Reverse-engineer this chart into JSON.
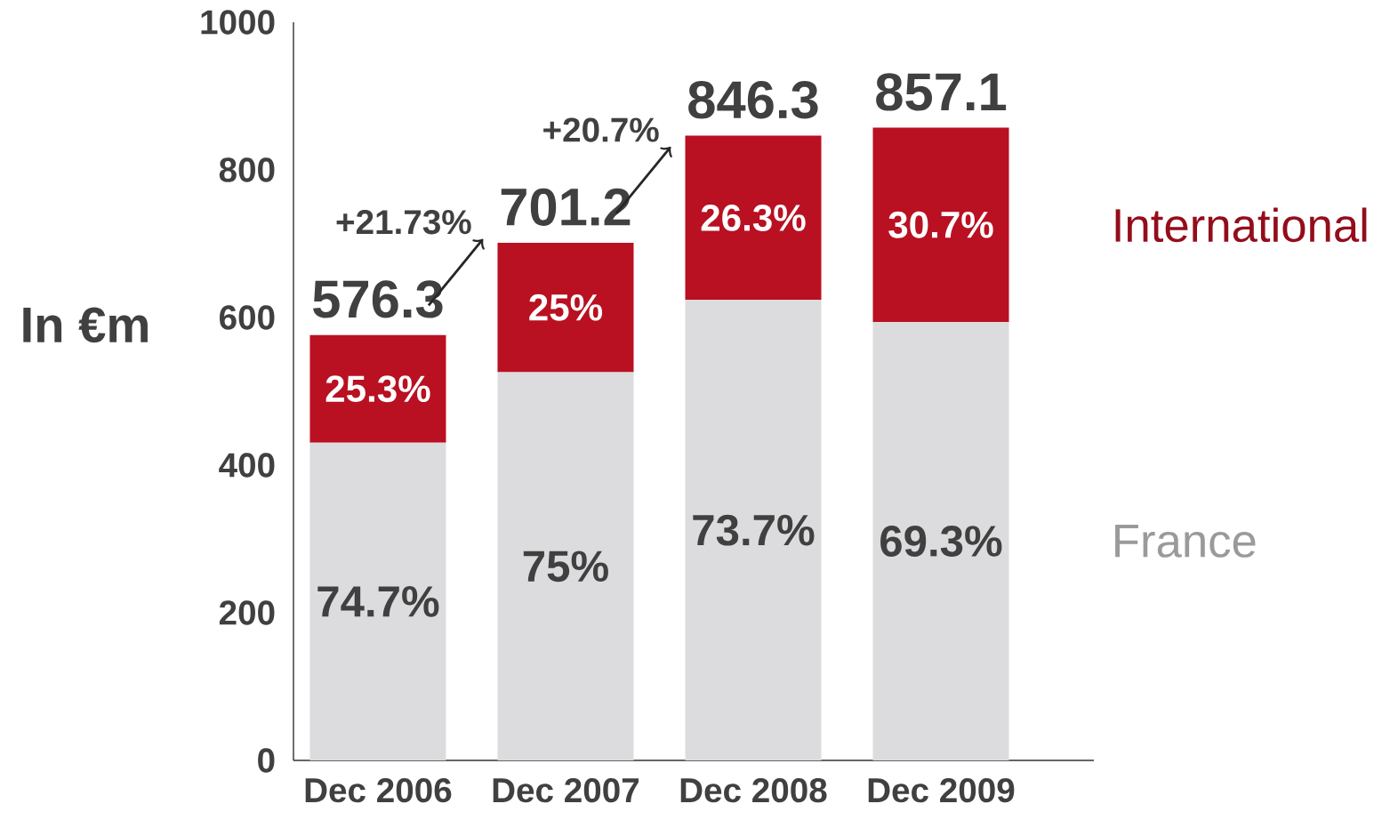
{
  "chart_data": {
    "type": "bar",
    "stacked": true,
    "ylabel": "In €m",
    "categories": [
      "Dec 2006",
      "Dec 2007",
      "Dec 2008",
      "Dec 2009"
    ],
    "series": [
      {
        "name": "France",
        "color": "#dcdcde",
        "values": [
          430.5,
          525.9,
          623.7,
          594.0
        ]
      },
      {
        "name": "International",
        "color": "#b91022",
        "values": [
          145.8,
          175.3,
          222.6,
          263.1
        ]
      }
    ],
    "totals": [
      "576.3",
      "701.2",
      "846.3",
      "857.1"
    ],
    "annotations": [
      "+21.73%",
      "+20.7%",
      "74.7%",
      "75%",
      "73.7%",
      "69.3%",
      "25.3%",
      "25%",
      "26.3%",
      "30.7%"
    ],
    "ylim": [
      0,
      1000
    ],
    "yticks": [
      0,
      200,
      400,
      600,
      800,
      1000
    ],
    "grid": false
  }
}
